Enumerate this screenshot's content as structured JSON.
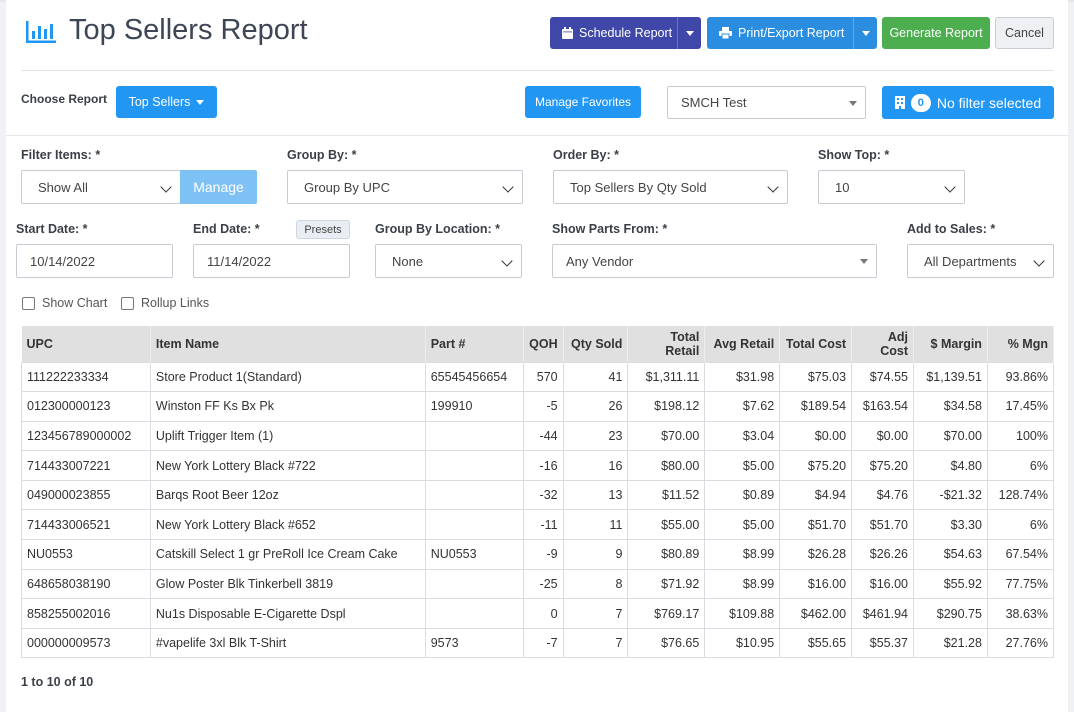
{
  "header": {
    "title": "Top Sellers Report",
    "schedule_label": "Schedule Report",
    "print_label": "Print/Export Report",
    "generate_label": "Generate Report",
    "cancel_label": "Cancel"
  },
  "toolbar": {
    "choose_report_label": "Choose Report",
    "report_selected": "Top Sellers",
    "manage_favorites_label": "Manage Favorites",
    "store_value": "SMCH Test",
    "filter_count": "0",
    "filter_label": "No filter selected"
  },
  "filters": {
    "filter_items_label": "Filter Items: *",
    "filter_items_value": "Show All",
    "manage_label": "Manage",
    "group_by_label": "Group By: *",
    "group_by_value": "Group By UPC",
    "order_by_label": "Order By: *",
    "order_by_value": "Top Sellers By Qty Sold",
    "show_top_label": "Show Top: *",
    "show_top_value": "10",
    "start_date_label": "Start Date: *",
    "start_date_value": "10/14/2022",
    "end_date_label": "End Date: *",
    "presets_label": "Presets",
    "end_date_value": "11/14/2022",
    "group_loc_label": "Group By Location: *",
    "group_loc_value": "None",
    "parts_from_label": "Show Parts From: *",
    "parts_from_value": "Any Vendor",
    "add_sales_label": "Add to Sales: *",
    "add_sales_value": "All Departments",
    "show_chart_label": "Show Chart",
    "rollup_label": "Rollup Links"
  },
  "table": {
    "columns": [
      "UPC",
      "Item Name",
      "Part #",
      "QOH",
      "Qty Sold",
      "Total Retail",
      "Avg Retail",
      "Total Cost",
      "Adj Cost",
      "$ Margin",
      "% Mgn"
    ],
    "rows": [
      [
        "111222233334",
        "Store Product 1(Standard)",
        "65545456654",
        "570",
        "41",
        "$1,311.11",
        "$31.98",
        "$75.03",
        "$74.55",
        "$1,139.51",
        "93.86%"
      ],
      [
        "012300000123",
        "Winston FF Ks Bx Pk",
        "199910",
        "-5",
        "26",
        "$198.12",
        "$7.62",
        "$189.54",
        "$163.54",
        "$34.58",
        "17.45%"
      ],
      [
        "123456789000002",
        "Uplift Trigger Item (1)",
        "",
        "-44",
        "23",
        "$70.00",
        "$3.04",
        "$0.00",
        "$0.00",
        "$70.00",
        "100%"
      ],
      [
        "714433007221",
        "New York Lottery Black #722",
        "",
        "-16",
        "16",
        "$80.00",
        "$5.00",
        "$75.20",
        "$75.20",
        "$4.80",
        "6%"
      ],
      [
        "049000023855",
        "Barqs Root Beer 12oz",
        "",
        "-32",
        "13",
        "$11.52",
        "$0.89",
        "$4.94",
        "$4.76",
        "-$21.32",
        "128.74%"
      ],
      [
        "714433006521",
        "New York Lottery Black #652",
        "",
        "-11",
        "11",
        "$55.00",
        "$5.00",
        "$51.70",
        "$51.70",
        "$3.30",
        "6%"
      ],
      [
        "NU0553",
        "Catskill Select 1 gr PreRoll Ice Cream Cake",
        "NU0553",
        "-9",
        "9",
        "$80.89",
        "$8.99",
        "$26.28",
        "$26.26",
        "$54.63",
        "67.54%"
      ],
      [
        "648658038190",
        "Glow Poster Blk Tinkerbell 3819",
        "",
        "-25",
        "8",
        "$71.92",
        "$8.99",
        "$16.00",
        "$16.00",
        "$55.92",
        "77.75%"
      ],
      [
        "858255002016",
        "Nu1s Disposable E-Cigarette Dspl",
        "",
        "0",
        "7",
        "$769.17",
        "$109.88",
        "$462.00",
        "$461.94",
        "$290.75",
        "38.63%"
      ],
      [
        "000000009573",
        "#vapelife 3xl Blk T-Shirt",
        "9573",
        "-7",
        "7",
        "$76.65",
        "$10.95",
        "$55.65",
        "$55.37",
        "$21.28",
        "27.76%"
      ]
    ]
  },
  "footer": {
    "pagination": "1 to 10 of 10"
  },
  "colors": {
    "schedule": "#3f48a8",
    "primary": "#2196f3",
    "print": "#2b8de0",
    "generate": "#4cae4f",
    "manage_disabled": "#7ec1f5",
    "table_header": "#e0e0e0"
  }
}
